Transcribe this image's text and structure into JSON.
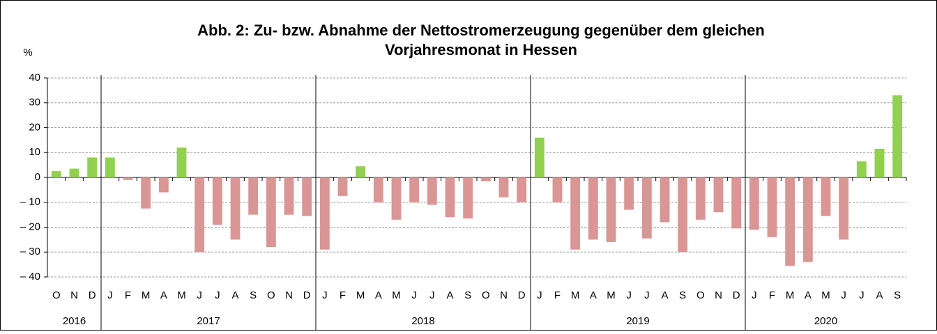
{
  "chart_data": {
    "type": "bar",
    "title": "Abb. 2: Zu- bzw. Abnahme der Nettostromerzeugung gegenüber dem gleichen",
    "subtitle": "Vorjahresmonat in Hessen",
    "y_label": "%",
    "positive_color": "#92d050",
    "negative_color": "#da9694",
    "ylim": [
      -40,
      40
    ],
    "yticks": [
      {
        "value": -40,
        "label": "– 40"
      },
      {
        "value": -30,
        "label": "– 30"
      },
      {
        "value": -20,
        "label": "– 20"
      },
      {
        "value": -10,
        "label": "– 10"
      },
      0,
      10,
      20,
      30,
      40
    ],
    "grid": true,
    "groups": [
      {
        "name": "2016",
        "categories": [
          "O",
          "N",
          "D"
        ],
        "values": [
          2.5,
          3.5,
          8
        ]
      },
      {
        "name": "2017",
        "categories": [
          "J",
          "F",
          "M",
          "A",
          "M",
          "J",
          "J",
          "A",
          "S",
          "O",
          "N",
          "D"
        ],
        "values": [
          8,
          -1,
          -12.5,
          -6,
          12,
          -30,
          -19,
          -25,
          -15,
          -28,
          -15,
          -15.5
        ]
      },
      {
        "name": "2018",
        "categories": [
          "J",
          "F",
          "M",
          "A",
          "M",
          "J",
          "J",
          "A",
          "S",
          "O",
          "N",
          "D"
        ],
        "values": [
          -29,
          -7.5,
          4.5,
          -10,
          -17,
          -10,
          -11,
          -16,
          -16.5,
          -1.5,
          -8,
          -10
        ]
      },
      {
        "name": "2019",
        "categories": [
          "J",
          "F",
          "M",
          "A",
          "M",
          "J",
          "J",
          "A",
          "S",
          "O",
          "N",
          "D"
        ],
        "values": [
          16,
          -10,
          -29,
          -25,
          -26,
          -13,
          -24.5,
          -18,
          -30,
          -17,
          -14,
          -20.5
        ]
      },
      {
        "name": "2020",
        "categories": [
          "J",
          "F",
          "M",
          "A",
          "M",
          "J",
          "J",
          "A",
          "S"
        ],
        "values": [
          -21,
          -24,
          -35.5,
          -34,
          -15.5,
          -25,
          6.5,
          11.5,
          33
        ]
      }
    ]
  }
}
